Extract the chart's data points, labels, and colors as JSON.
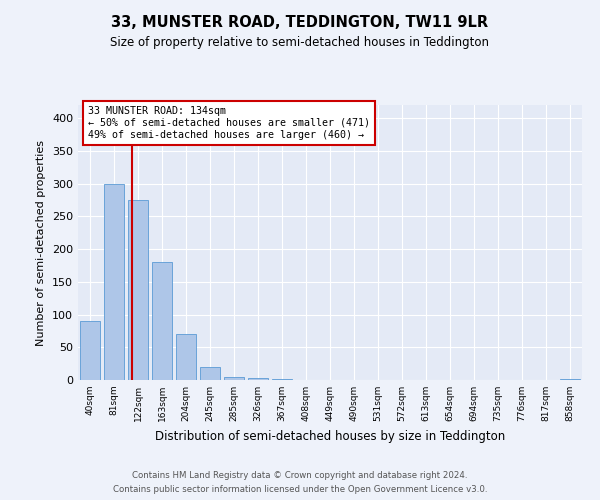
{
  "title1": "33, MUNSTER ROAD, TEDDINGTON, TW11 9LR",
  "title2": "Size of property relative to semi-detached houses in Teddington",
  "xlabel": "Distribution of semi-detached houses by size in Teddington",
  "ylabel": "Number of semi-detached properties",
  "bar_labels": [
    "40sqm",
    "81sqm",
    "122sqm",
    "163sqm",
    "204sqm",
    "245sqm",
    "285sqm",
    "326sqm",
    "367sqm",
    "408sqm",
    "449sqm",
    "490sqm",
    "531sqm",
    "572sqm",
    "613sqm",
    "654sqm",
    "694sqm",
    "735sqm",
    "776sqm",
    "817sqm",
    "858sqm"
  ],
  "bar_values": [
    90,
    300,
    275,
    180,
    70,
    20,
    5,
    3,
    1,
    0,
    0,
    0,
    0,
    0,
    0,
    0,
    0,
    0,
    0,
    0,
    1
  ],
  "bar_color": "#aec6e8",
  "bar_edge_color": "#5b9bd5",
  "annotation_title": "33 MUNSTER ROAD: 134sqm",
  "annotation_line1": "← 50% of semi-detached houses are smaller (471)",
  "annotation_line2": "49% of semi-detached houses are larger (460) →",
  "annotation_box_color": "#ffffff",
  "annotation_box_edge": "#cc0000",
  "vline_color": "#cc0000",
  "vline_x": 1.75,
  "ylim": [
    0,
    420
  ],
  "yticks": [
    0,
    50,
    100,
    150,
    200,
    250,
    300,
    350,
    400
  ],
  "footer1": "Contains HM Land Registry data © Crown copyright and database right 2024.",
  "footer2": "Contains public sector information licensed under the Open Government Licence v3.0.",
  "bg_color": "#eef2fa",
  "plot_bg_color": "#e4eaf6"
}
